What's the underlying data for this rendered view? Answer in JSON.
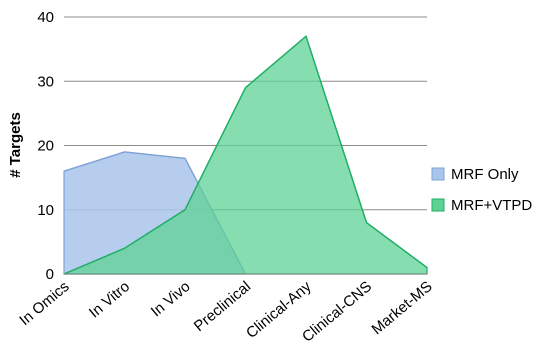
{
  "chart_data": {
    "type": "area",
    "categories": [
      "In Omics",
      "In Vitro",
      "In Vivo",
      "Preclinical",
      "Clinical-Any",
      "Clinical-CNS",
      "Market-MS"
    ],
    "series": [
      {
        "name": "MRF Only",
        "values": [
          16,
          19,
          18,
          0,
          null,
          null,
          null
        ],
        "fill": "#A9C4EB",
        "stroke": "#7FA3D6"
      },
      {
        "name": "MRF+VTPD",
        "values": [
          0,
          4,
          10,
          29,
          37,
          8,
          1
        ],
        "fill": "#5ED294",
        "stroke": "#1FAE63"
      }
    ],
    "ylabel": "# Targets",
    "ylim": [
      0,
      40
    ],
    "yticks": [
      0,
      10,
      20,
      30,
      40
    ],
    "grid": true,
    "legend": "right"
  }
}
